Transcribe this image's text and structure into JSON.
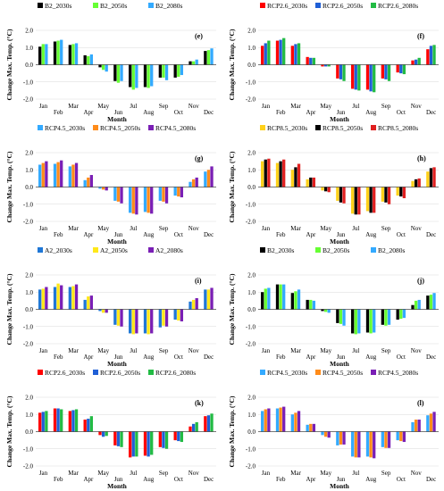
{
  "chart_data": [
    {
      "type": "bar",
      "panel_label": "(e)",
      "categories": [
        "Jan",
        "Feb",
        "Mar",
        "Apr",
        "May",
        "Jun",
        "Jul",
        "Aug",
        "Sep",
        "Oct",
        "Nov",
        "Dec"
      ],
      "xlabel": "Month",
      "ylabel": "Change Max. Temp. (°C)",
      "ylim": [
        -2.0,
        2.0
      ],
      "yticks": [
        "2.0",
        "1.0",
        "0.0",
        "-1.0",
        "-2.0"
      ],
      "series": [
        {
          "name": "B2_2030s",
          "color": "#000000",
          "values": [
            1.05,
            1.35,
            1.15,
            0.55,
            -0.15,
            -0.95,
            -1.3,
            -1.3,
            -0.75,
            -0.75,
            0.2,
            0.8
          ]
        },
        {
          "name": "B2_2050s",
          "color": "#66ff33",
          "values": [
            1.2,
            1.4,
            1.2,
            0.5,
            -0.3,
            -1.05,
            -1.45,
            -1.35,
            -0.75,
            -0.7,
            0.2,
            0.85
          ]
        },
        {
          "name": "B2_2080s",
          "color": "#33aaff",
          "values": [
            1.2,
            1.45,
            1.25,
            0.6,
            -0.4,
            -0.95,
            -1.35,
            -1.25,
            -0.9,
            -0.6,
            0.3,
            0.95
          ]
        }
      ]
    },
    {
      "type": "bar",
      "panel_label": "(f)",
      "categories": [
        "Jan",
        "Feb",
        "Mar",
        "Apr",
        "May",
        "Jun",
        "Jul",
        "Aug",
        "Sep",
        "Oct",
        "Nov",
        "Dec"
      ],
      "xlabel": "Month",
      "ylabel": "Change Max. Temp. (°C)",
      "ylim": [
        -2.0,
        2.0
      ],
      "yticks": [
        "2.0",
        "1.0",
        "0.0",
        "-1.0",
        "-2.0"
      ],
      "series": [
        {
          "name": "RCP2.6_2030s",
          "color": "#ff0000",
          "values": [
            1.1,
            1.4,
            1.1,
            0.45,
            -0.1,
            -0.8,
            -1.4,
            -1.45,
            -0.8,
            -0.45,
            0.25,
            0.9
          ]
        },
        {
          "name": "RCP2.6_2050s",
          "color": "#1f5fd6",
          "values": [
            1.25,
            1.45,
            1.2,
            0.4,
            -0.1,
            -0.85,
            -1.45,
            -1.55,
            -0.85,
            -0.5,
            0.3,
            1.1
          ]
        },
        {
          "name": "RCP2.6_2080s",
          "color": "#22bb44",
          "values": [
            1.4,
            1.55,
            1.25,
            0.4,
            -0.1,
            -0.95,
            -1.5,
            -1.6,
            -0.95,
            -0.55,
            0.4,
            1.15
          ]
        }
      ]
    },
    {
      "type": "bar",
      "panel_label": "(g)",
      "categories": [
        "Jan",
        "Feb",
        "Mar",
        "Apr",
        "May",
        "Jun",
        "Jul",
        "Aug",
        "Sep",
        "Oct",
        "Nov",
        "Dec"
      ],
      "xlabel": "Month",
      "ylabel": "Change Max. Temp. (°C)",
      "ylim": [
        -2.0,
        2.0
      ],
      "yticks": [
        "2.0",
        "1.0",
        "0.0",
        "-1.0",
        "-2.0"
      ],
      "series": [
        {
          "name": "RCP4.5_2030s",
          "color": "#33aaff",
          "values": [
            1.3,
            1.35,
            1.2,
            0.4,
            -0.1,
            -0.8,
            -1.5,
            -1.45,
            -0.8,
            -0.5,
            0.3,
            0.9
          ]
        },
        {
          "name": "RCP4.5_2050s",
          "color": "#ff8c1a",
          "values": [
            1.4,
            1.45,
            1.3,
            0.55,
            -0.15,
            -0.85,
            -1.55,
            -1.5,
            -0.85,
            -0.55,
            0.45,
            1.0
          ]
        },
        {
          "name": "RCP4.5_2080s",
          "color": "#7a1fb5",
          "values": [
            1.5,
            1.55,
            1.4,
            0.7,
            -0.2,
            -0.95,
            -1.6,
            -1.55,
            -0.95,
            -0.6,
            0.55,
            1.2
          ]
        }
      ]
    },
    {
      "type": "bar",
      "panel_label": "(h)",
      "categories": [
        "Jan",
        "Feb",
        "Mar",
        "Apr",
        "May",
        "Jun",
        "Jul",
        "Aug",
        "Sep",
        "Oct",
        "Nov",
        "Dec"
      ],
      "xlabel": "Month",
      "ylabel": "Change Max. Temp. (°C)",
      "ylim": [
        -2.0,
        2.0
      ],
      "yticks": [
        "2.0",
        "1.0",
        "0.0",
        "-1.0",
        "-2.0"
      ],
      "series": [
        {
          "name": "RCP8.5_2030s",
          "color": "#ffd11a",
          "values": [
            1.5,
            1.4,
            1.0,
            0.45,
            -0.2,
            -0.8,
            -1.55,
            -1.4,
            -0.85,
            -0.5,
            0.35,
            0.9
          ]
        },
        {
          "name": "RCP8.5_2050s",
          "color": "#000000",
          "values": [
            1.6,
            1.5,
            1.15,
            0.55,
            -0.25,
            -0.9,
            -1.6,
            -1.5,
            -0.9,
            -0.55,
            0.45,
            1.1
          ]
        },
        {
          "name": "RCP8.5_2080s",
          "color": "#e02020",
          "values": [
            1.65,
            1.6,
            1.35,
            0.55,
            -0.3,
            -0.95,
            -1.6,
            -1.5,
            -1.0,
            -0.65,
            0.5,
            1.15
          ]
        }
      ]
    },
    {
      "type": "bar",
      "panel_label": "(i)",
      "categories": [
        "Jan",
        "Feb",
        "Mar",
        "Apr",
        "May",
        "Jun",
        "Jul",
        "Aug",
        "Sep",
        "Oct",
        "Nov",
        "Dec"
      ],
      "xlabel": "Month",
      "ylabel": "Change Max. Temp. (°C)",
      "ylim": [
        -2.0,
        2.0
      ],
      "yticks": [
        "2.0",
        "1.0",
        "0.0",
        "-1.0",
        "-2.0"
      ],
      "series": [
        {
          "name": "A2_2030s",
          "color": "#1f77d6",
          "values": [
            1.15,
            1.3,
            1.3,
            0.55,
            -0.1,
            -0.9,
            -1.4,
            -1.4,
            -1.05,
            -0.6,
            0.45,
            1.15
          ]
        },
        {
          "name": "A2_2050s",
          "color": "#ffe81a",
          "values": [
            1.2,
            1.5,
            1.35,
            0.75,
            -0.2,
            -0.95,
            -1.45,
            -1.45,
            -0.95,
            -0.65,
            0.55,
            1.15
          ]
        },
        {
          "name": "A2_2080s",
          "color": "#7a1fb5",
          "values": [
            1.3,
            1.4,
            1.45,
            0.8,
            -0.2,
            -1.0,
            -1.4,
            -1.4,
            -1.0,
            -0.7,
            0.65,
            1.25
          ]
        }
      ]
    },
    {
      "type": "bar",
      "panel_label": "(j)",
      "categories": [
        "Jan",
        "Feb",
        "Mar",
        "Apr",
        "May",
        "Jun",
        "Jul",
        "Aug",
        "Sep",
        "Oct",
        "Nov",
        "Dec"
      ],
      "xlabel": "Month",
      "ylabel": "Change Max. Temp. (°C)",
      "ylim": [
        -2.0,
        2.0
      ],
      "yticks": [
        "2.0",
        "1.0",
        "0.0",
        "-1.0",
        "-2.0"
      ],
      "series": [
        {
          "name": "B2_2030s",
          "color": "#000000",
          "values": [
            1.0,
            1.45,
            0.95,
            0.55,
            -0.1,
            -0.8,
            -1.4,
            -1.35,
            -0.9,
            -0.6,
            0.25,
            0.8
          ]
        },
        {
          "name": "B2_2050s",
          "color": "#66ff33",
          "values": [
            1.2,
            1.45,
            1.05,
            0.55,
            -0.15,
            -0.85,
            -1.45,
            -1.4,
            -0.95,
            -0.55,
            0.5,
            0.85
          ]
        },
        {
          "name": "B2_2080s",
          "color": "#33aaff",
          "values": [
            1.25,
            1.45,
            1.15,
            0.5,
            -0.2,
            -0.95,
            -1.4,
            -1.35,
            -0.9,
            -0.5,
            0.55,
            0.95
          ]
        }
      ]
    },
    {
      "type": "bar",
      "panel_label": "(k)",
      "categories": [
        "Jan",
        "Feb",
        "Mar",
        "Apr",
        "May",
        "Jun",
        "Jul",
        "Aug",
        "Sep",
        "Oct",
        "Nov",
        "Dec"
      ],
      "xlabel": "Month",
      "ylabel": "Change Max. Temp. (°C)",
      "ylim": [
        -2.0,
        2.0
      ],
      "yticks": [
        "2.0",
        "1.0",
        "0.0",
        "-1.0",
        "-2.0"
      ],
      "series": [
        {
          "name": "RCP2.6_2030s",
          "color": "#ff0000",
          "values": [
            1.1,
            1.35,
            1.2,
            0.7,
            -0.2,
            -0.8,
            -1.5,
            -1.4,
            -0.9,
            -0.5,
            0.3,
            0.9
          ]
        },
        {
          "name": "RCP2.6_2050s",
          "color": "#1f5fd6",
          "values": [
            1.15,
            1.35,
            1.25,
            0.75,
            -0.3,
            -0.85,
            -1.45,
            -1.45,
            -0.95,
            -0.55,
            0.45,
            0.95
          ]
        },
        {
          "name": "RCP2.6_2080s",
          "color": "#22bb44",
          "values": [
            1.2,
            1.3,
            1.3,
            0.9,
            -0.25,
            -0.9,
            -1.45,
            -1.35,
            -1.0,
            -0.6,
            0.55,
            1.05
          ]
        }
      ]
    },
    {
      "type": "bar",
      "panel_label": "(l)",
      "categories": [
        "Jan",
        "Feb",
        "Mar",
        "Apr",
        "May",
        "Jun",
        "Jul",
        "Aug",
        "Sep",
        "Oct",
        "Nov",
        "Dec"
      ],
      "xlabel": "Month",
      "ylabel": "Change Max. Temp. (°C)",
      "ylim": [
        -2.0,
        2.0
      ],
      "yticks": [
        "2.0",
        "1.0",
        "0.0",
        "-1.0",
        "-2.0"
      ],
      "series": [
        {
          "name": "RCP4.5_2030s",
          "color": "#33aaff",
          "values": [
            1.2,
            1.35,
            1.0,
            0.4,
            -0.2,
            -0.8,
            -1.45,
            -1.45,
            -0.9,
            -0.5,
            0.55,
            0.95
          ]
        },
        {
          "name": "RCP4.5_2050s",
          "color": "#ff8c1a",
          "values": [
            1.3,
            1.4,
            1.1,
            0.45,
            -0.3,
            -0.75,
            -1.5,
            -1.5,
            -0.95,
            -0.55,
            0.7,
            1.05
          ]
        },
        {
          "name": "RCP4.5_2080s",
          "color": "#7a1fb5",
          "values": [
            1.35,
            1.45,
            1.2,
            0.45,
            -0.35,
            -0.75,
            -1.5,
            -1.55,
            -0.95,
            -0.6,
            0.7,
            1.15
          ]
        }
      ]
    }
  ]
}
